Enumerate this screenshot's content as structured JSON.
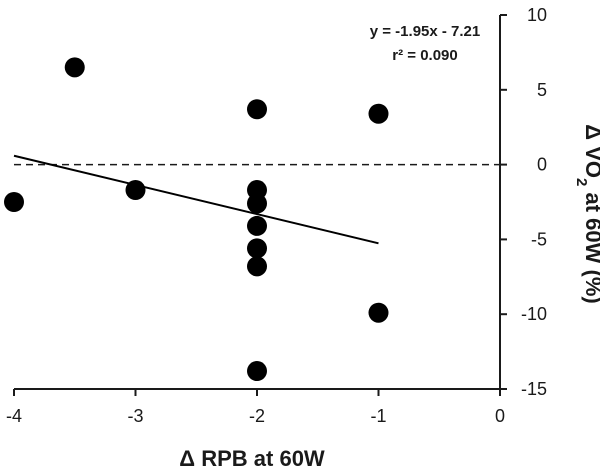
{
  "chart_data": {
    "type": "scatter",
    "xlabel": "Δ RPB at 60W",
    "ylabel": "Δ VO2 at 60W (%)",
    "ylabel_main": "Δ VO",
    "ylabel_sub": "2",
    "ylabel_rest": " at 60W (%)",
    "xlim": [
      -4,
      0
    ],
    "ylim": [
      -15,
      10
    ],
    "x_ticks": [
      -4,
      -3,
      -2,
      -1,
      0
    ],
    "y_ticks": [
      10,
      5,
      0,
      -5,
      -10,
      -15
    ],
    "x_tick_labels": [
      "-4",
      "-3",
      "-2",
      "-1",
      "0"
    ],
    "y_tick_labels": [
      "10",
      "5",
      "0",
      "-5",
      "-10",
      "-15"
    ],
    "y_axis_position": "right",
    "reference_line_y": 0,
    "points": [
      {
        "x": -4.0,
        "y": -2.5
      },
      {
        "x": -3.5,
        "y": 6.5
      },
      {
        "x": -3.0,
        "y": -1.7
      },
      {
        "x": -2.0,
        "y": 3.7
      },
      {
        "x": -2.0,
        "y": -1.7
      },
      {
        "x": -2.0,
        "y": -2.6
      },
      {
        "x": -2.0,
        "y": -4.1
      },
      {
        "x": -2.0,
        "y": -5.6
      },
      {
        "x": -2.0,
        "y": -6.8
      },
      {
        "x": -2.0,
        "y": -13.8
      },
      {
        "x": -1.0,
        "y": 3.4
      },
      {
        "x": -1.0,
        "y": -9.9
      }
    ],
    "fit": {
      "slope": -1.95,
      "intercept": -7.21,
      "x_from": -4.0,
      "x_to": -1.0
    },
    "equation": "y = -1.95x - 7.21",
    "r2": "r² = 0.090",
    "marker_color": "#000000",
    "line_color": "#000000"
  }
}
